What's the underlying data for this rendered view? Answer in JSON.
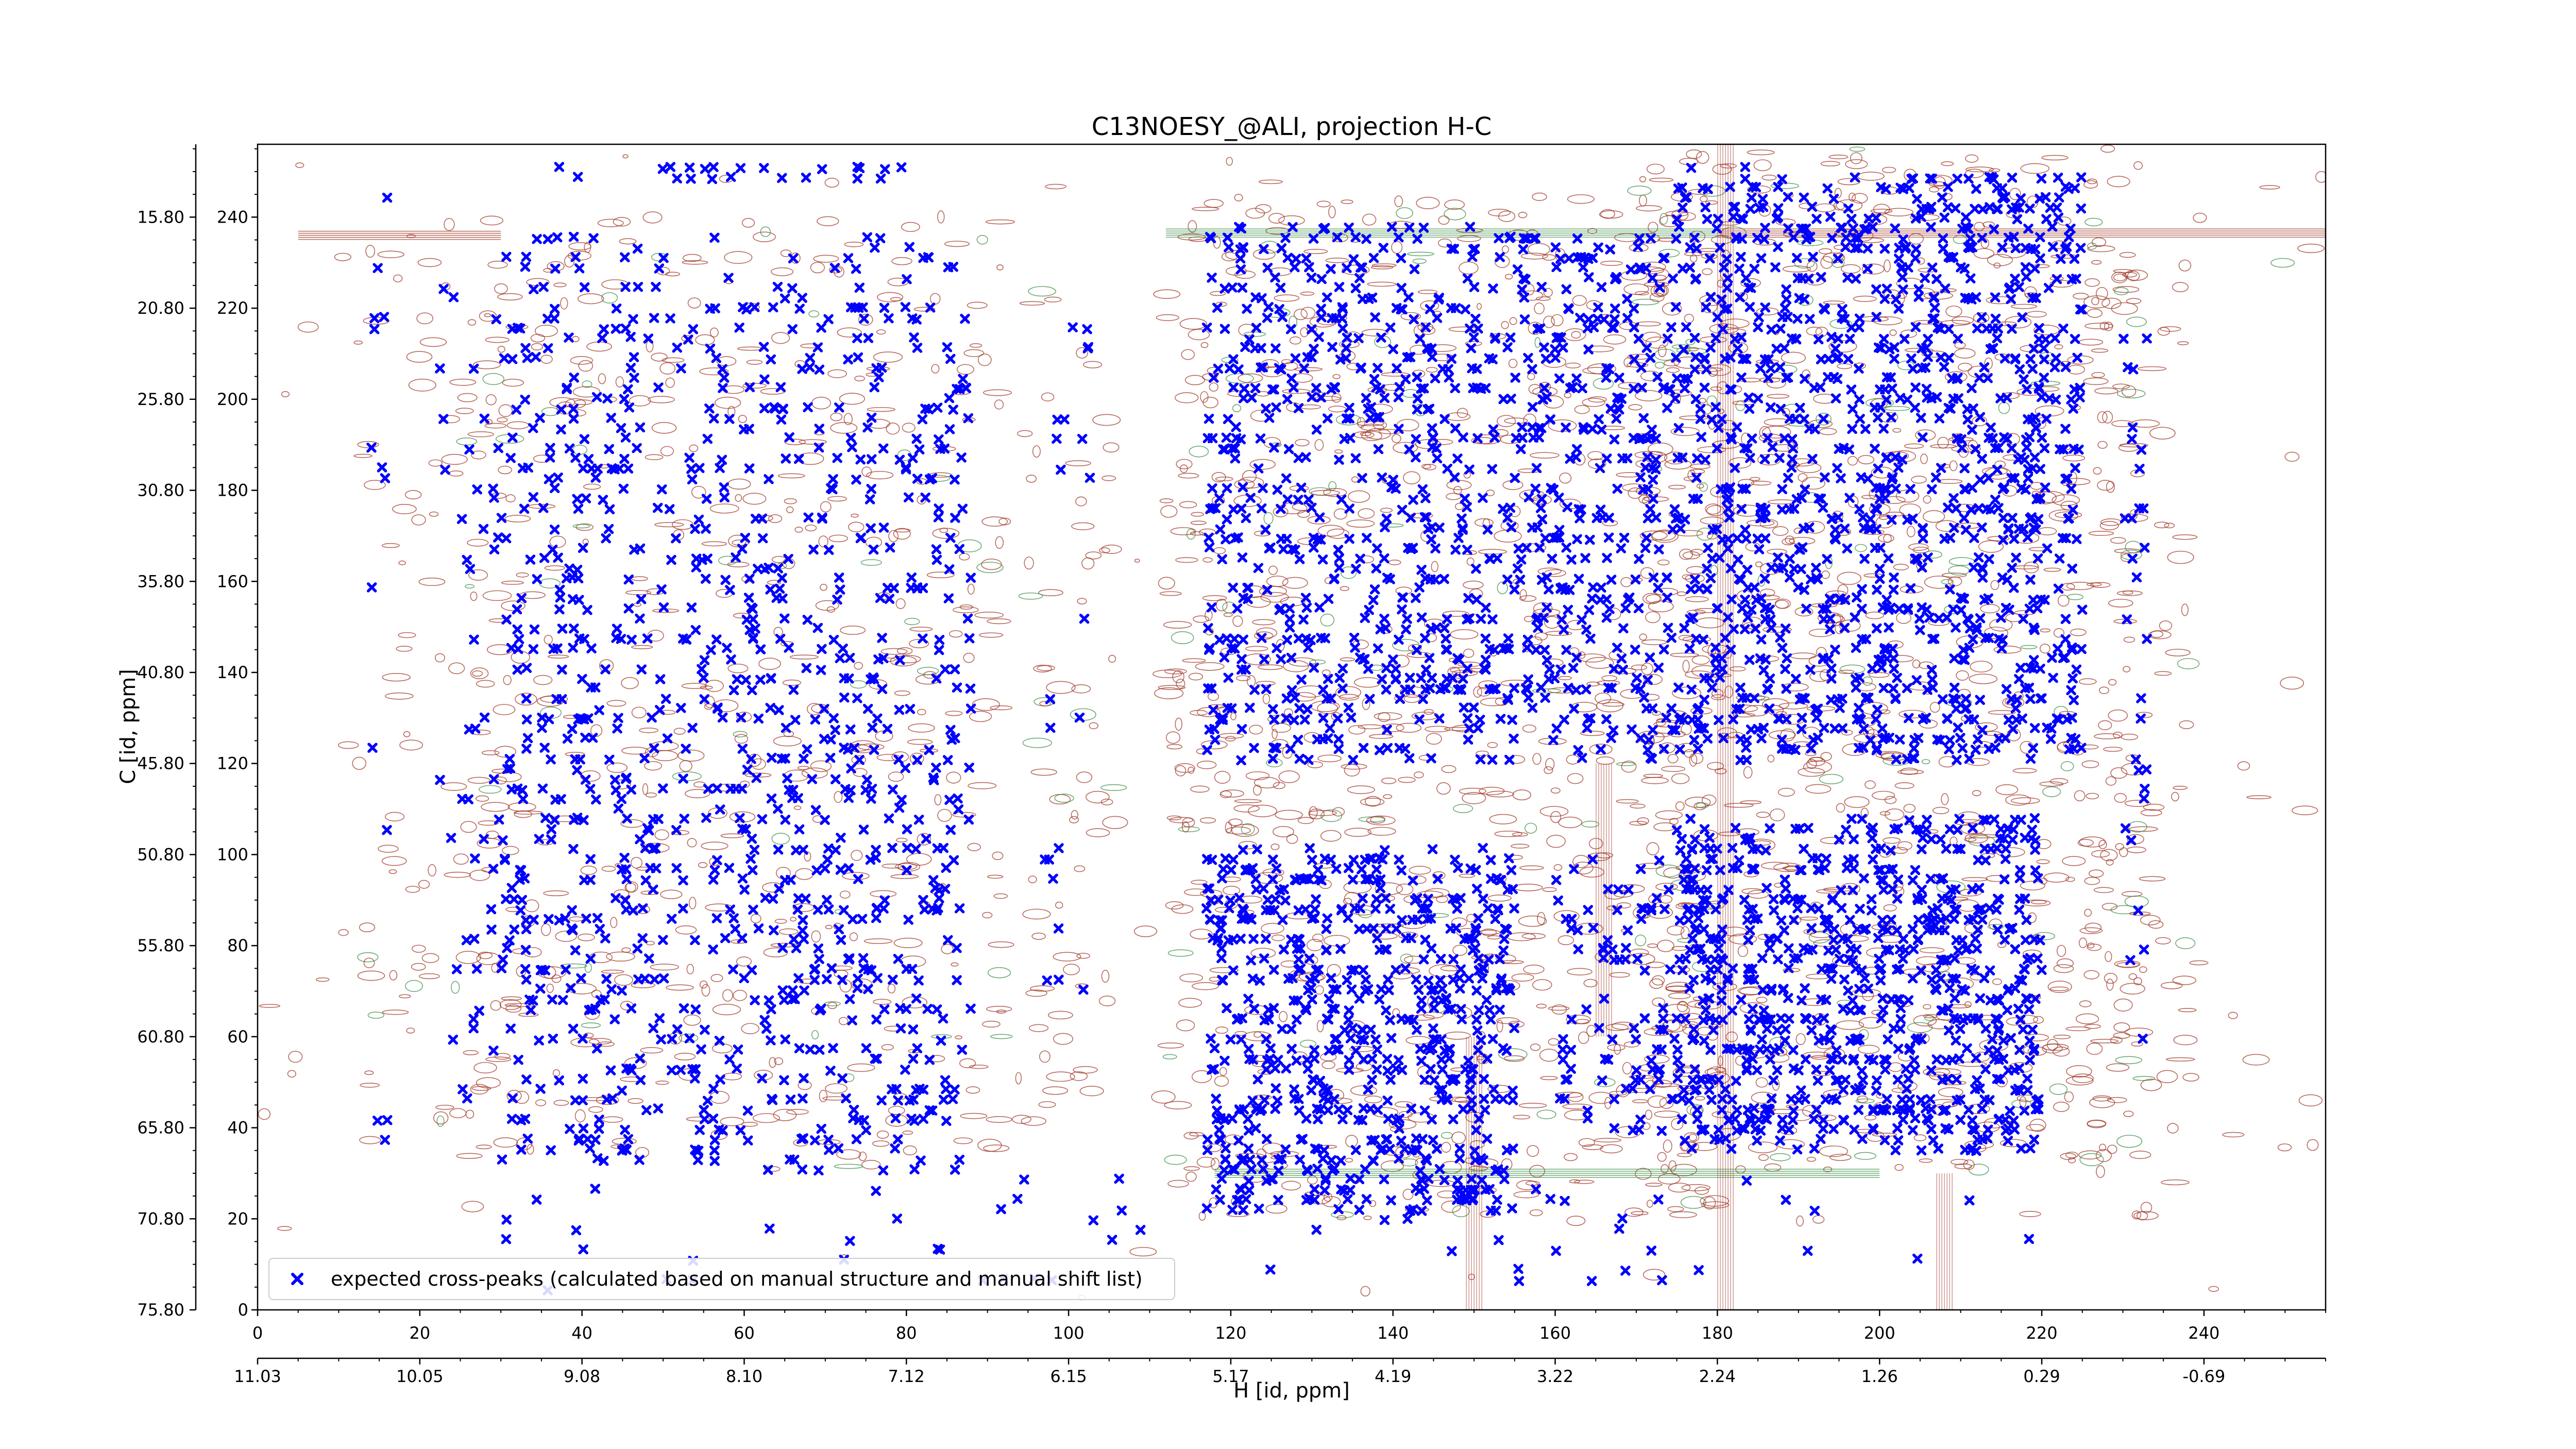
{
  "chart_data": {
    "type": "scatter",
    "title": "C13NOESY_@ALI, projection H-C",
    "xlabel": "H [id, ppm]",
    "ylabel": "C [id, ppm]",
    "x_index_ticks": [
      "0",
      "20",
      "40",
      "60",
      "80",
      "100",
      "120",
      "140",
      "160",
      "180",
      "200",
      "220",
      "240"
    ],
    "x_ppm_ticks": [
      "11.03",
      "10.05",
      "9.08",
      "8.10",
      "7.12",
      "6.15",
      "5.17",
      "4.19",
      "3.22",
      "2.24",
      "1.26",
      "0.29",
      "-0.69"
    ],
    "y_index_ticks": [
      "0",
      "20",
      "40",
      "60",
      "80",
      "100",
      "120",
      "140",
      "160",
      "180",
      "200",
      "220",
      "240"
    ],
    "y_ppm_ticks": [
      "75.80",
      "70.80",
      "65.80",
      "60.80",
      "55.80",
      "50.80",
      "45.80",
      "40.80",
      "35.80",
      "30.80",
      "25.80",
      "20.80",
      "15.80"
    ],
    "xlim": [
      0,
      255
    ],
    "ylim": [
      0,
      256
    ],
    "grid": false,
    "legend_placement": "lower-left",
    "colors": {
      "contour_positive": "#a0392a",
      "contour_negative": "#3f8f4a",
      "marker": "#0000ff"
    },
    "series": [
      {
        "name": "expected cross-peaks (calculated based on manual structure and manual shift list)",
        "marker": "x",
        "clusters": [
          {
            "x": [
              30,
              88
            ],
            "y": [
              100,
              236
            ],
            "count": 620
          },
          {
            "x": [
              30,
              88
            ],
            "y": [
              30,
              102
            ],
            "count": 380
          },
          {
            "x": [
              22,
              30
            ],
            "y": [
              45,
              225
            ],
            "count": 45
          },
          {
            "x": [
              117,
              175
            ],
            "y": [
              120,
              238
            ],
            "count": 900
          },
          {
            "x": [
              117,
              155
            ],
            "y": [
              22,
              102
            ],
            "count": 620
          },
          {
            "x": [
              160,
              185
            ],
            "y": [
              38,
              100
            ],
            "count": 140
          },
          {
            "x": [
              175,
              225
            ],
            "y": [
              120,
              250
            ],
            "count": 1100
          },
          {
            "x": [
              175,
              220
            ],
            "y": [
              35,
              108
            ],
            "count": 700
          },
          {
            "x": [
              230,
              233
            ],
            "y": [
              55,
              220
            ],
            "count": 30
          },
          {
            "x": [
              97,
              103
            ],
            "y": [
              55,
              220
            ],
            "count": 22
          },
          {
            "x": [
              14,
              16
            ],
            "y": [
              38,
              250
            ],
            "count": 14
          },
          {
            "x": [
              30,
              220
            ],
            "y": [
              5,
              30
            ],
            "count": 60
          },
          {
            "x": [
              32,
              88
            ],
            "y": [
              248,
              252
            ],
            "count": 22
          }
        ]
      }
    ]
  }
}
